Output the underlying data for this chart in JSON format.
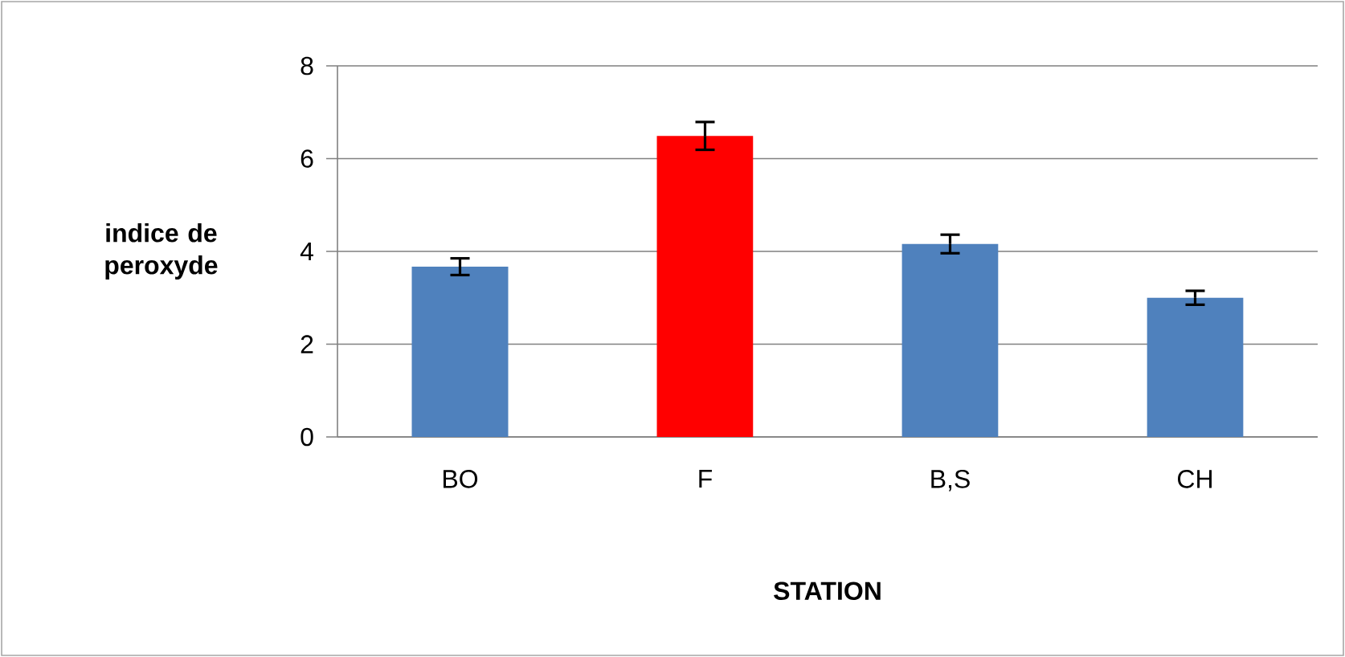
{
  "chart_data": {
    "type": "bar",
    "ylabel": "indice de peroxyde",
    "xlabel": "STATION",
    "categories": [
      "BO",
      "F",
      "B,S",
      "CH"
    ],
    "values": [
      3.67,
      6.49,
      4.16,
      3.0
    ],
    "errors": [
      0.18,
      0.3,
      0.2,
      0.15
    ],
    "colors": [
      "#4f81bd",
      "#ff0000",
      "#4f81bd",
      "#4f81bd"
    ],
    "ylim": [
      0,
      8
    ],
    "yticks": [
      0,
      2,
      4,
      6,
      8
    ],
    "grid": "y"
  }
}
